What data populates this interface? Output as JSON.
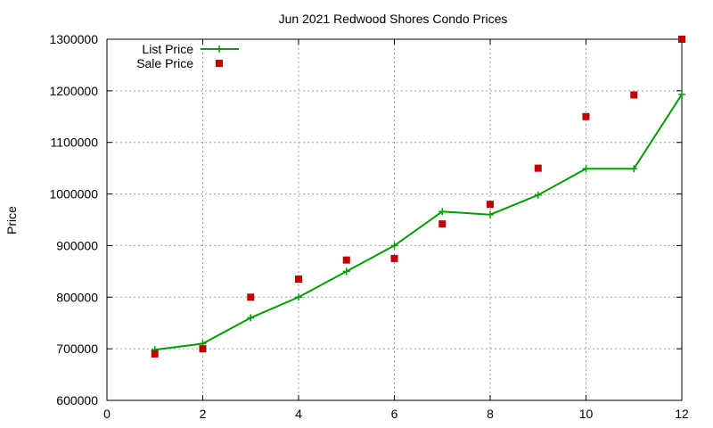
{
  "chart_data": {
    "type": "line",
    "title": "Jun 2021 Redwood Shores Condo Prices",
    "xlabel": "",
    "ylabel": "Price",
    "xlim": [
      0,
      12
    ],
    "ylim": [
      600000,
      1300000
    ],
    "xticks": [
      0,
      2,
      4,
      6,
      8,
      10,
      12
    ],
    "yticks": [
      600000,
      700000,
      800000,
      900000,
      1000000,
      1100000,
      1200000,
      1300000
    ],
    "grid": true,
    "legend_position": "top-left",
    "series": [
      {
        "name": "List Price",
        "style": "line-with-plus-markers",
        "color": "#009e00",
        "x": [
          1,
          2,
          3,
          4,
          5,
          6,
          7,
          8,
          9,
          10,
          11,
          12
        ],
        "y": [
          698000,
          710000,
          760000,
          800000,
          850000,
          900000,
          966000,
          960000,
          998000,
          1049000,
          1049000,
          1193000
        ]
      },
      {
        "name": "Sale Price",
        "style": "square-markers",
        "color": "#c00000",
        "x": [
          1,
          2,
          3,
          4,
          5,
          6,
          7,
          8,
          9,
          10,
          11,
          12
        ],
        "y": [
          690000,
          700000,
          800000,
          835000,
          872000,
          875000,
          942000,
          980000,
          1050000,
          1150000,
          1192000,
          1300000
        ]
      }
    ]
  }
}
